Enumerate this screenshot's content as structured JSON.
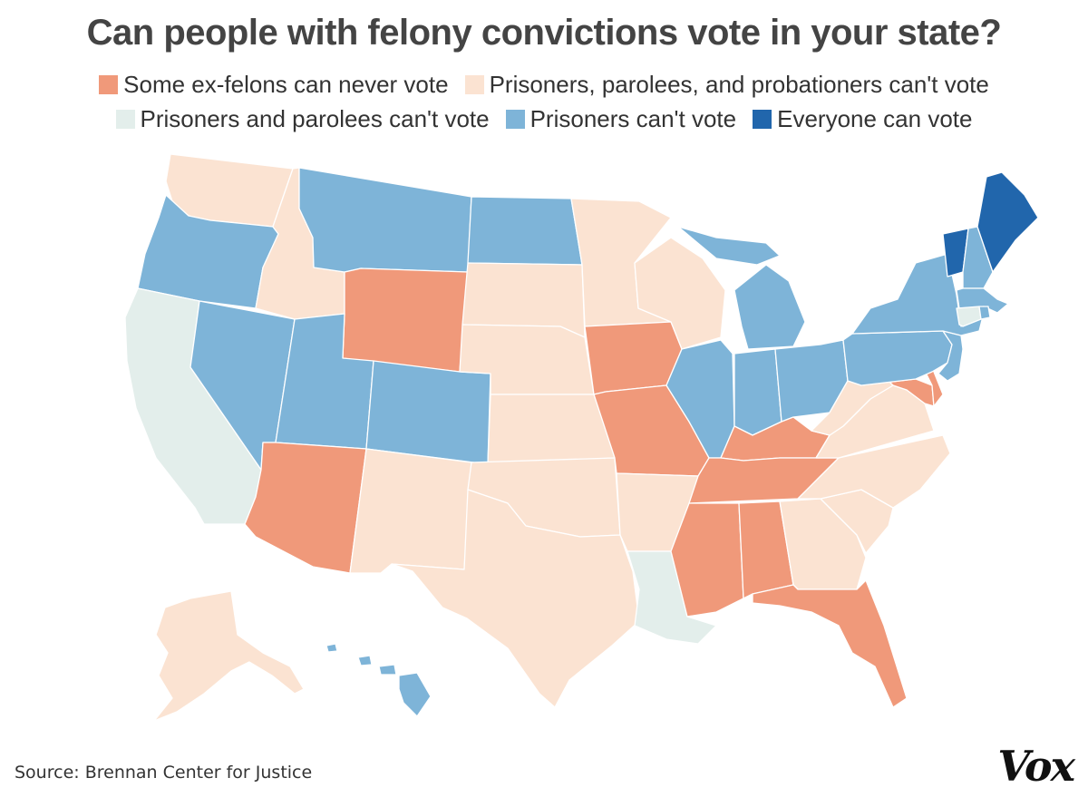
{
  "title": "Can people with felony convictions vote in your state?",
  "legend": [
    {
      "key": "never",
      "label": "Some ex-felons can never vote",
      "color": "#f0997a"
    },
    {
      "key": "ppp",
      "label": "Prisoners, parolees, and probationers can't vote",
      "color": "#fbe3d2"
    },
    {
      "key": "pp",
      "label": "Prisoners and parolees can't vote",
      "color": "#e3eeeb"
    },
    {
      "key": "prisoners",
      "label": "Prisoners can't vote",
      "color": "#7eb4d8"
    },
    {
      "key": "everyone",
      "label": "Everyone can vote",
      "color": "#2166ac"
    }
  ],
  "states": {
    "WA": "ppp",
    "OR": "prisoners",
    "CA": "pp",
    "NV": "prisoners",
    "ID": "ppp",
    "MT": "prisoners",
    "WY": "never",
    "UT": "prisoners",
    "AZ": "never",
    "CO": "prisoners",
    "NM": "ppp",
    "ND": "prisoners",
    "SD": "ppp",
    "NE": "ppp",
    "KS": "ppp",
    "OK": "ppp",
    "TX": "ppp",
    "MN": "ppp",
    "IA": "never",
    "MO": "never",
    "AR": "ppp",
    "LA": "pp",
    "WI": "ppp",
    "IL": "prisoners",
    "MI": "prisoners",
    "IN": "prisoners",
    "OH": "prisoners",
    "KY": "never",
    "TN": "never",
    "MS": "never",
    "AL": "never",
    "FL": "never",
    "GA": "ppp",
    "SC": "ppp",
    "NC": "ppp",
    "VA": "ppp",
    "WV": "ppp",
    "MD": "never",
    "DE": "never",
    "PA": "prisoners",
    "NJ": "prisoners",
    "NY": "prisoners",
    "CT": "pp",
    "RI": "prisoners",
    "MA": "prisoners",
    "VT": "everyone",
    "NH": "prisoners",
    "ME": "everyone",
    "AK": "ppp",
    "HI": "prisoners"
  },
  "source": "Source: Brennan Center for Justice",
  "logo": "Vox"
}
